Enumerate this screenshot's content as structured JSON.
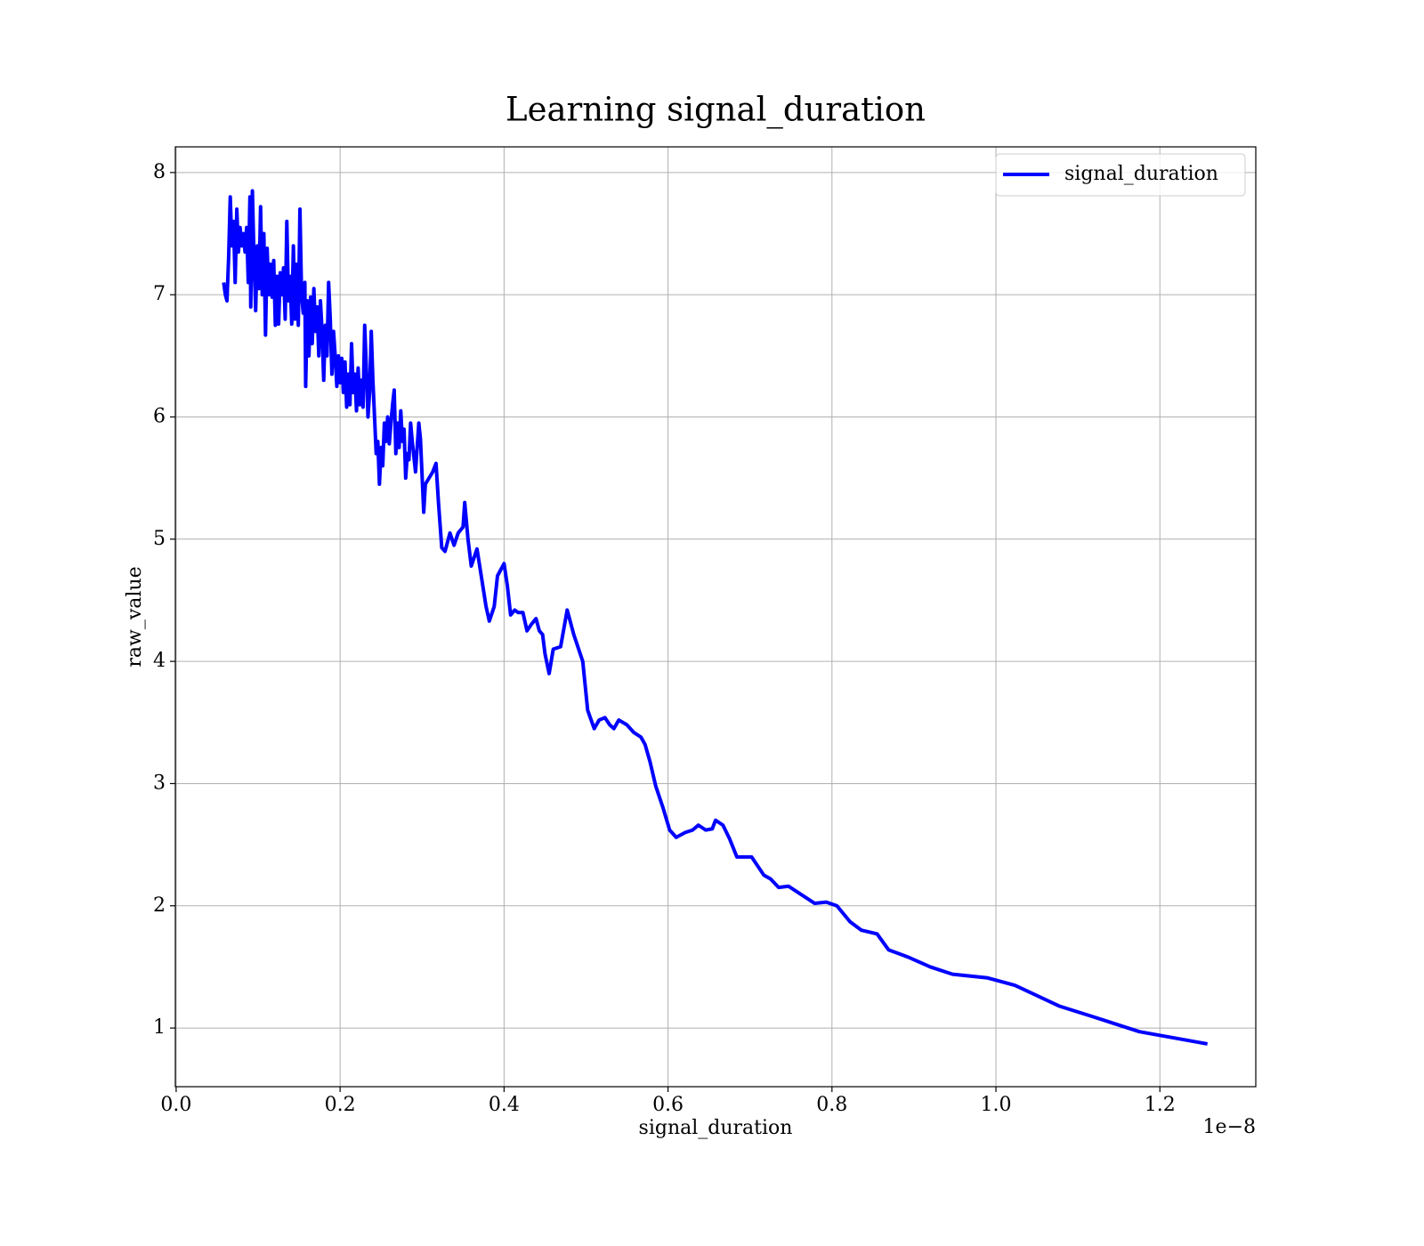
{
  "chart_data": {
    "type": "line",
    "title": "Learning signal_duration",
    "x_label": "signal_duration",
    "y_label": "raw_value",
    "x_offset_label": "1e−8",
    "x": [
      0.058,
      0.06,
      0.062,
      0.064,
      0.066,
      0.068,
      0.07,
      0.072,
      0.074,
      0.076,
      0.078,
      0.08,
      0.082,
      0.084,
      0.086,
      0.088,
      0.09,
      0.091,
      0.093,
      0.095,
      0.097,
      0.099,
      0.101,
      0.103,
      0.105,
      0.107,
      0.109,
      0.111,
      0.113,
      0.115,
      0.117,
      0.119,
      0.121,
      0.123,
      0.125,
      0.127,
      0.129,
      0.131,
      0.133,
      0.135,
      0.137,
      0.139,
      0.141,
      0.143,
      0.145,
      0.147,
      0.149,
      0.151,
      0.153,
      0.155,
      0.157,
      0.158,
      0.16,
      0.162,
      0.164,
      0.166,
      0.168,
      0.17,
      0.172,
      0.174,
      0.176,
      0.178,
      0.18,
      0.182,
      0.184,
      0.186,
      0.188,
      0.19,
      0.192,
      0.194,
      0.196,
      0.198,
      0.2,
      0.202,
      0.204,
      0.206,
      0.208,
      0.21,
      0.212,
      0.214,
      0.216,
      0.218,
      0.22,
      0.222,
      0.224,
      0.226,
      0.228,
      0.23,
      0.232,
      0.234,
      0.236,
      0.238,
      0.24,
      0.242,
      0.244,
      0.246,
      0.248,
      0.25,
      0.252,
      0.254,
      0.256,
      0.258,
      0.26,
      0.262,
      0.264,
      0.266,
      0.268,
      0.27,
      0.272,
      0.274,
      0.276,
      0.278,
      0.28,
      0.282,
      0.284,
      0.286,
      0.288,
      0.292,
      0.296,
      0.298,
      0.302,
      0.304,
      0.313,
      0.317,
      0.32,
      0.324,
      0.328,
      0.334,
      0.339,
      0.344,
      0.35,
      0.352,
      0.356,
      0.36,
      0.367,
      0.371,
      0.378,
      0.382,
      0.388,
      0.392,
      0.396,
      0.4,
      0.404,
      0.408,
      0.413,
      0.417,
      0.423,
      0.428,
      0.433,
      0.439,
      0.443,
      0.447,
      0.45,
      0.455,
      0.46,
      0.469,
      0.477,
      0.485,
      0.491,
      0.496,
      0.502,
      0.51,
      0.516,
      0.523,
      0.529,
      0.534,
      0.54,
      0.55,
      0.558,
      0.567,
      0.572,
      0.578,
      0.585,
      0.594,
      0.602,
      0.61,
      0.621,
      0.63,
      0.637,
      0.646,
      0.654,
      0.658,
      0.667,
      0.675,
      0.684,
      0.702,
      0.717,
      0.725,
      0.735,
      0.747,
      0.779,
      0.793,
      0.806,
      0.822,
      0.836,
      0.855,
      0.869,
      0.893,
      0.92,
      0.947,
      0.99,
      1.023,
      1.077,
      1.115,
      1.175,
      1.258
    ],
    "series": [
      {
        "name": "signal_duration",
        "color": "#0000ff",
        "values": [
          7.1,
          7.0,
          6.95,
          7.3,
          7.8,
          7.4,
          7.6,
          7.1,
          7.7,
          7.35,
          7.55,
          7.4,
          7.5,
          7.35,
          7.55,
          7.1,
          7.8,
          6.9,
          7.85,
          7.3,
          6.87,
          7.4,
          7.05,
          7.72,
          7.0,
          7.5,
          6.67,
          7.38,
          7.0,
          7.25,
          6.98,
          7.28,
          6.75,
          7.15,
          6.76,
          7.18,
          7.0,
          7.22,
          6.8,
          7.6,
          6.95,
          7.15,
          6.76,
          7.4,
          6.8,
          7.25,
          6.75,
          7.7,
          7.0,
          6.85,
          7.1,
          6.25,
          6.95,
          6.5,
          6.98,
          6.6,
          7.05,
          6.7,
          6.9,
          6.5,
          6.95,
          6.7,
          6.3,
          6.75,
          6.5,
          7.1,
          6.8,
          6.35,
          6.7,
          6.5,
          6.25,
          6.5,
          6.28,
          6.48,
          6.2,
          6.45,
          6.08,
          6.35,
          6.1,
          6.6,
          6.2,
          6.35,
          6.05,
          6.4,
          6.1,
          6.3,
          6.08,
          6.75,
          6.4,
          6.0,
          6.2,
          6.7,
          6.3,
          6.0,
          5.7,
          5.8,
          5.45,
          5.75,
          5.6,
          5.95,
          5.8,
          6.0,
          5.78,
          5.95,
          6.1,
          6.22,
          5.7,
          5.95,
          5.75,
          6.05,
          5.8,
          5.9,
          5.5,
          5.7,
          5.65,
          5.95,
          5.8,
          5.55,
          5.95,
          5.82,
          5.22,
          5.45,
          5.55,
          5.62,
          5.3,
          4.93,
          4.9,
          5.05,
          4.95,
          5.05,
          5.1,
          5.3,
          5.0,
          4.78,
          4.92,
          4.75,
          4.45,
          4.33,
          4.45,
          4.7,
          4.75,
          4.8,
          4.62,
          4.38,
          4.42,
          4.4,
          4.4,
          4.25,
          4.3,
          4.35,
          4.25,
          4.22,
          4.06,
          3.9,
          4.1,
          4.12,
          4.42,
          4.22,
          4.1,
          4.0,
          3.6,
          3.45,
          3.52,
          3.54,
          3.48,
          3.45,
          3.52,
          3.48,
          3.42,
          3.38,
          3.32,
          3.18,
          2.98,
          2.8,
          2.62,
          2.56,
          2.6,
          2.62,
          2.66,
          2.62,
          2.63,
          2.7,
          2.66,
          2.55,
          2.4,
          2.4,
          2.25,
          2.22,
          2.15,
          2.16,
          2.02,
          2.03,
          2.0,
          1.87,
          1.8,
          1.77,
          1.64,
          1.58,
          1.5,
          1.44,
          1.41,
          1.35,
          1.18,
          1.1,
          0.97,
          0.87
        ]
      }
    ],
    "xlim": [
      -0.001,
      1.317
    ],
    "ylim": [
      0.52,
      8.21
    ],
    "xticks": [
      {
        "value": 0,
        "label": "0.0"
      },
      0.2,
      0.4,
      0.6,
      0.8,
      {
        "value": 1,
        "label": "1.0"
      },
      1.2
    ],
    "yticks": [
      1,
      2,
      3,
      4,
      5,
      6,
      7,
      8
    ],
    "grid": true,
    "legend": "upper right"
  }
}
